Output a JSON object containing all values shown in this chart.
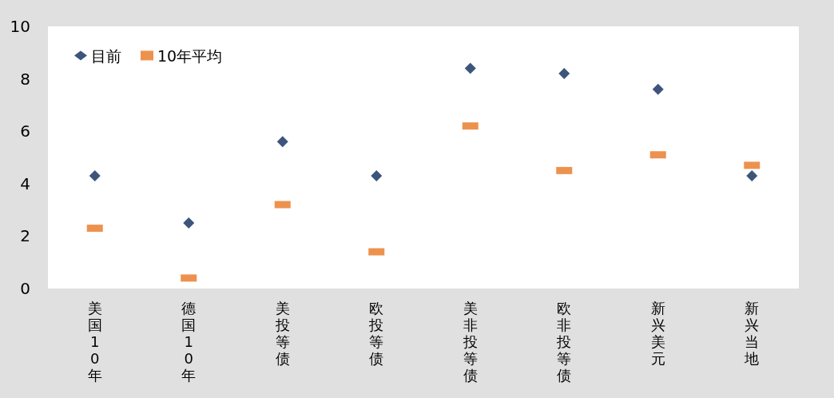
{
  "chart_data": {
    "type": "scatter",
    "categories": [
      "美国10年",
      "德国10年",
      "美投等债",
      "欧投等债",
      "美非投等债",
      "欧非投等债",
      "新兴美元",
      "新兴当地"
    ],
    "series": [
      {
        "name": "目前",
        "color": "#0d2a5c",
        "marker": "diamond",
        "values": [
          4.3,
          2.5,
          5.6,
          4.3,
          8.4,
          8.2,
          7.6,
          4.3
        ]
      },
      {
        "name": "10年平均",
        "color": "#e87722",
        "marker": "square",
        "values": [
          2.3,
          0.4,
          3.2,
          1.4,
          6.2,
          4.5,
          5.1,
          4.7
        ]
      }
    ],
    "ylim": [
      0,
      10
    ],
    "yticks": [
      0,
      2,
      4,
      6,
      8,
      10
    ],
    "grid": false,
    "legend": "top left"
  }
}
